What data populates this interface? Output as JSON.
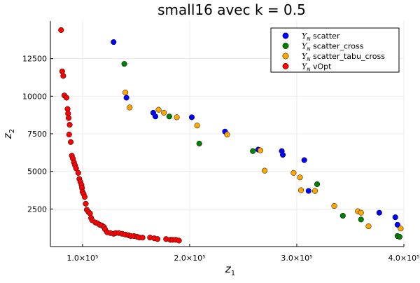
{
  "chart_data": {
    "type": "scatter",
    "title": "small16 avec k = 0.5",
    "xlabel": "z",
    "xlabel_sub": "1",
    "ylabel": "z",
    "ylabel_sub": "2",
    "xlim": [
      70000,
      400000
    ],
    "ylim": [
      0,
      15000
    ],
    "x_ticks": [
      100000,
      200000,
      300000,
      400000
    ],
    "x_tick_labels": [
      "1.0×10⁵",
      "2.0×10⁵",
      "3.0×10⁵",
      "4.0×10⁵"
    ],
    "y_ticks": [
      2500,
      5000,
      7500,
      10000,
      12500
    ],
    "y_tick_labels": [
      "2500",
      "5000",
      "7500",
      "10000",
      "12500"
    ],
    "grid": true,
    "legend_position": "top-right",
    "series": [
      {
        "name": "Y_N scatter",
        "legend_symbol": "Y",
        "legend_sub": "N",
        "legend_text": "scatter",
        "color": "#0000ff",
        "points": [
          [
            129000,
            13600
          ],
          [
            141000,
            9900
          ],
          [
            166000,
            8900
          ],
          [
            168000,
            8650
          ],
          [
            202000,
            8600
          ],
          [
            233000,
            7650
          ],
          [
            264000,
            6450
          ],
          [
            286000,
            6350
          ],
          [
            287000,
            6100
          ],
          [
            307000,
            5750
          ],
          [
            311000,
            3700
          ],
          [
            377000,
            2250
          ],
          [
            392000,
            1950
          ],
          [
            394000,
            1450
          ]
        ]
      },
      {
        "name": "Y_N scatter_cross",
        "legend_symbol": "Y",
        "legend_sub": "N",
        "legend_text": "scatter_cross",
        "color": "#008000",
        "points": [
          [
            139000,
            12150
          ],
          [
            181000,
            8650
          ],
          [
            209000,
            6850
          ],
          [
            259000,
            6350
          ],
          [
            319000,
            4150
          ],
          [
            343000,
            2050
          ],
          [
            360000,
            1800
          ],
          [
            394000,
            700
          ],
          [
            396000,
            650
          ]
        ]
      },
      {
        "name": "Y_N scatter_tabu_cross",
        "legend_symbol": "Y",
        "legend_sub": "N",
        "legend_text": "scatter_tabu_cross",
        "color": "#ffa500",
        "points": [
          [
            140000,
            10250
          ],
          [
            144000,
            9250
          ],
          [
            171000,
            9100
          ],
          [
            176000,
            8900
          ],
          [
            188000,
            8600
          ],
          [
            207000,
            8050
          ],
          [
            235000,
            7450
          ],
          [
            266000,
            6400
          ],
          [
            270000,
            5050
          ],
          [
            297000,
            4900
          ],
          [
            303000,
            4600
          ],
          [
            304000,
            3750
          ],
          [
            317000,
            3700
          ],
          [
            335000,
            2700
          ],
          [
            357000,
            2350
          ],
          [
            360000,
            2250
          ],
          [
            367000,
            1350
          ],
          [
            397000,
            1200
          ]
        ]
      },
      {
        "name": "Y_N vOpt",
        "legend_symbol": "Y",
        "legend_sub": "N",
        "legend_text": "vOpt",
        "color": "#ff0000",
        "points": [
          [
            80000,
            14400
          ],
          [
            81000,
            11650
          ],
          [
            82000,
            11350
          ],
          [
            83000,
            10050
          ],
          [
            85000,
            9900
          ],
          [
            86000,
            9150
          ],
          [
            86500,
            8850
          ],
          [
            87000,
            8550
          ],
          [
            88000,
            8100
          ],
          [
            87500,
            7450
          ],
          [
            89000,
            6950
          ],
          [
            90000,
            6050
          ],
          [
            91000,
            5850
          ],
          [
            92000,
            5600
          ],
          [
            93000,
            5400
          ],
          [
            94000,
            5200
          ],
          [
            96000,
            4900
          ],
          [
            97000,
            4500
          ],
          [
            98000,
            4300
          ],
          [
            99000,
            4100
          ],
          [
            99500,
            3900
          ],
          [
            100000,
            3650
          ],
          [
            101000,
            3500
          ],
          [
            102000,
            3300
          ],
          [
            103000,
            2850
          ],
          [
            104000,
            2450
          ],
          [
            105500,
            2300
          ],
          [
            107000,
            2200
          ],
          [
            108000,
            1900
          ],
          [
            109000,
            1750
          ],
          [
            112000,
            1600
          ],
          [
            114000,
            1550
          ],
          [
            116000,
            1450
          ],
          [
            118000,
            1400
          ],
          [
            120000,
            1300
          ],
          [
            121000,
            1150
          ],
          [
            123000,
            950
          ],
          [
            126000,
            900
          ],
          [
            129000,
            850
          ],
          [
            131000,
            900
          ],
          [
            134000,
            900
          ],
          [
            137000,
            850
          ],
          [
            140000,
            800
          ],
          [
            143000,
            750
          ],
          [
            145000,
            700
          ],
          [
            148000,
            700
          ],
          [
            151000,
            650
          ],
          [
            153000,
            600
          ],
          [
            156000,
            600
          ],
          [
            163000,
            600
          ],
          [
            167000,
            550
          ],
          [
            170000,
            500
          ],
          [
            178000,
            500
          ],
          [
            182000,
            450
          ],
          [
            184000,
            450
          ],
          [
            187000,
            450
          ],
          [
            190000,
            400
          ]
        ]
      }
    ]
  }
}
